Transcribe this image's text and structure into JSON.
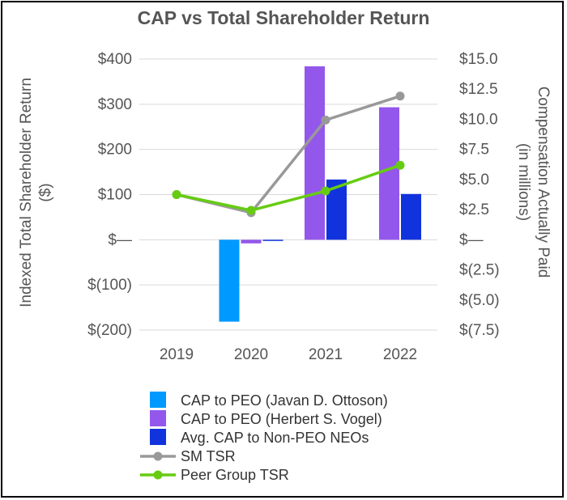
{
  "chart_data": {
    "type": "bar",
    "title": "CAP vs Total Shareholder Return",
    "categories": [
      "2019",
      "2020",
      "2021",
      "2022"
    ],
    "left_axis": {
      "label_line1": "Indexed Total Shareholder Return",
      "label_line2": "($)",
      "ylim": [
        -200,
        400
      ],
      "ticks": [
        400,
        300,
        200,
        100,
        0,
        -100,
        -200
      ],
      "tick_labels": [
        "$400",
        "$300",
        "$200",
        "$100",
        "$—",
        "$(100)",
        "$(200)"
      ]
    },
    "right_axis": {
      "label_line1": "Compensation Actually Paid",
      "label_line2": "(in millions)",
      "ylim": [
        -7.5,
        15
      ],
      "ticks": [
        15,
        12.5,
        10,
        7.5,
        5,
        2.5,
        0,
        -2.5,
        -5,
        -7.5
      ],
      "tick_labels": [
        "$15.0",
        "$12.5",
        "$10.0",
        "$7.5",
        "$5.0",
        "$2.5",
        "$—",
        "$(2.5)",
        "$(5.0)",
        "$(7.5)"
      ]
    },
    "bar_series": [
      {
        "name": "CAP to PEO (Javan D. Ottoson)",
        "axis": "right",
        "color": "#0099FF",
        "values": [
          null,
          -6.8,
          null,
          null
        ]
      },
      {
        "name": "CAP to PEO (Herbert S. Vogel)",
        "axis": "right",
        "color": "#9457EB",
        "values": [
          null,
          -0.3,
          14.4,
          11.0
        ]
      },
      {
        "name": "Avg. CAP to Non-PEO NEOs",
        "axis": "right",
        "color": "#1133DD",
        "values": [
          null,
          -0.1,
          5.0,
          3.8
        ]
      }
    ],
    "line_series": [
      {
        "name": "SM TSR",
        "axis": "left",
        "color": "#999999",
        "values": [
          100,
          60,
          265,
          318
        ]
      },
      {
        "name": "Peer Group TSR",
        "axis": "left",
        "color": "#66CC11",
        "values": [
          100,
          65,
          108,
          165
        ]
      }
    ],
    "legend_position": "bottom",
    "grid": true
  },
  "legend": {
    "items": [
      {
        "label": "CAP to PEO (Javan D. Ottoson)",
        "kind": "bar",
        "color": "#0099FF"
      },
      {
        "label": "CAP to PEO (Herbert S. Vogel)",
        "kind": "bar",
        "color": "#9457EB"
      },
      {
        "label": "Avg. CAP to Non-PEO NEOs",
        "kind": "bar",
        "color": "#1133DD"
      },
      {
        "label": "SM TSR",
        "kind": "line",
        "color": "#999999"
      },
      {
        "label": "Peer Group TSR",
        "kind": "line",
        "color": "#66CC11"
      }
    ]
  }
}
